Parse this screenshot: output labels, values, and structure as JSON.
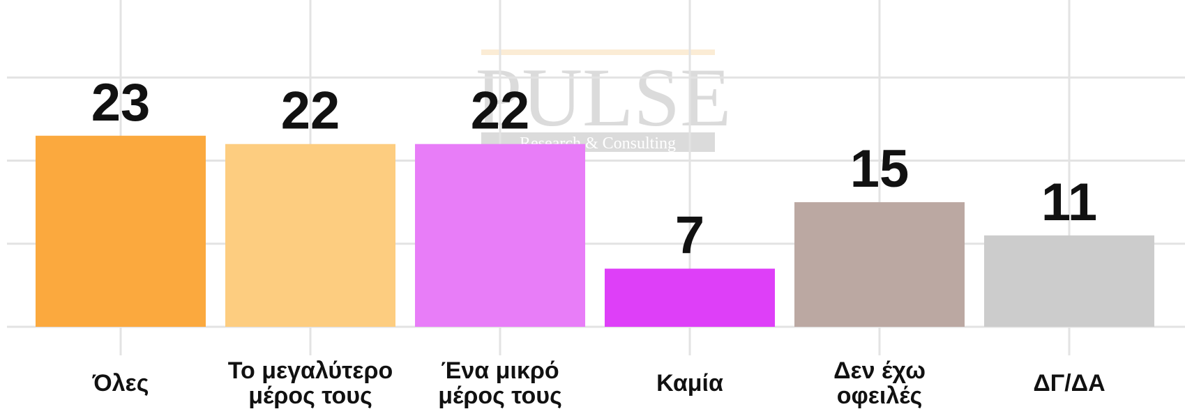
{
  "chart_data": {
    "type": "bar",
    "categories": [
      "Όλες",
      "Το μεγαλύτερο μέρος τους",
      "Ένα μικρό μέρος τους",
      "Καμία",
      "Δεν έχω οφειλές",
      "ΔΓ/ΔΑ"
    ],
    "values": [
      23,
      22,
      22,
      7,
      15,
      11
    ],
    "colors": [
      "#FBA93E",
      "#FDCD80",
      "#E87DF8",
      "#DE3FF8",
      "#BBA8A2",
      "#CCCCCC"
    ],
    "ylim": [
      0,
      39
    ],
    "yticks": [
      0,
      10,
      20,
      30
    ],
    "grid": true,
    "watermark": {
      "title": "PULSE",
      "subtitle": "Research & Consulting"
    }
  }
}
